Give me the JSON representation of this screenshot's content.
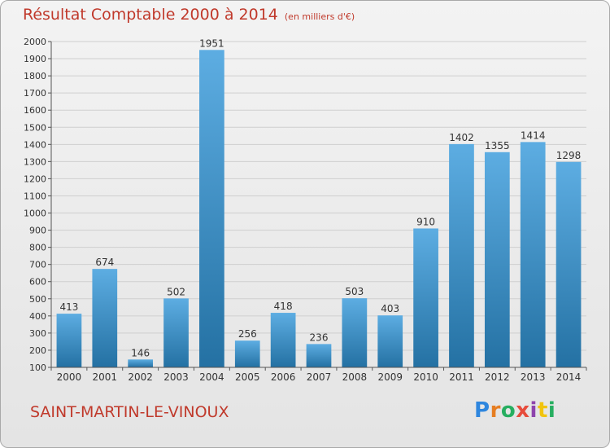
{
  "header": {
    "title": "Résultat Comptable 2000 à 2014",
    "subtitle": "(en milliers d'€)"
  },
  "footer": {
    "place": "SAINT-MARTIN-LE-VINOUX",
    "brand_letters": [
      "P",
      "r",
      "o",
      "x",
      "i",
      "t",
      "i"
    ],
    "brand_colors": [
      "#2e86de",
      "#e67e22",
      "#27ae60",
      "#e74c3c",
      "#8e44ad",
      "#f1c40f",
      "#27ae60"
    ]
  },
  "colors": {
    "bar_top": "#5dade2",
    "bar_bottom": "#2471a3",
    "title": "#c0392b",
    "grid": "#cfcfcf"
  },
  "chart_data": {
    "type": "bar",
    "title": "Résultat Comptable 2000 à 2014",
    "subtitle": "(en milliers d'€)",
    "categories": [
      "2000",
      "2001",
      "2002",
      "2003",
      "2004",
      "2005",
      "2006",
      "2007",
      "2008",
      "2009",
      "2010",
      "2011",
      "2012",
      "2013",
      "2014"
    ],
    "values": [
      413,
      674,
      146,
      502,
      1951,
      256,
      418,
      236,
      503,
      403,
      910,
      1402,
      1355,
      1414,
      1298
    ],
    "ylim": [
      100,
      2000
    ],
    "yticks": [
      100,
      200,
      300,
      400,
      500,
      600,
      700,
      800,
      900,
      1000,
      1100,
      1200,
      1300,
      1400,
      1500,
      1600,
      1700,
      1800,
      1900,
      2000
    ],
    "grid": true,
    "legend": "none"
  }
}
